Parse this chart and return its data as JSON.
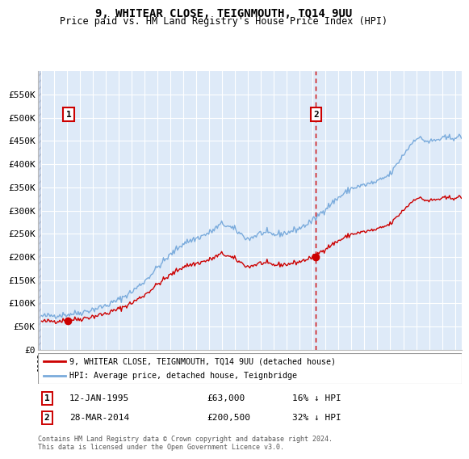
{
  "title": "9, WHITEAR CLOSE, TEIGNMOUTH, TQ14 9UU",
  "subtitle": "Price paid vs. HM Land Registry's House Price Index (HPI)",
  "legend_line1": "9, WHITEAR CLOSE, TEIGNMOUTH, TQ14 9UU (detached house)",
  "legend_line2": "HPI: Average price, detached house, Teignbridge",
  "annotation1_label": "1",
  "annotation1_date": "12-JAN-1995",
  "annotation1_price": "£63,000",
  "annotation1_hpi": "16% ↓ HPI",
  "annotation2_label": "2",
  "annotation2_date": "28-MAR-2014",
  "annotation2_price": "£200,500",
  "annotation2_hpi": "32% ↓ HPI",
  "footer": "Contains HM Land Registry data © Crown copyright and database right 2024.\nThis data is licensed under the Open Government Licence v3.0.",
  "hpi_color": "#7aabdc",
  "price_color": "#cc0000",
  "marker_color": "#cc0000",
  "dashed_vline_color": "#cc0000",
  "plot_bg_color": "#deeaf8",
  "grid_color": "#ffffff",
  "hatch_color": "#c8d4e8",
  "ylim": [
    0,
    600000
  ],
  "yticks": [
    0,
    50000,
    100000,
    150000,
    200000,
    250000,
    300000,
    350000,
    400000,
    450000,
    500000,
    550000
  ],
  "ytick_labels": [
    "£0",
    "£50K",
    "£100K",
    "£150K",
    "£200K",
    "£250K",
    "£300K",
    "£350K",
    "£400K",
    "£450K",
    "£500K",
    "£550K"
  ],
  "sale1_year": 1995.04,
  "sale1_value": 63000,
  "sale2_year": 2014.24,
  "sale2_value": 200500,
  "xlim_start": 1993.0,
  "xlim_end": 2025.5
}
